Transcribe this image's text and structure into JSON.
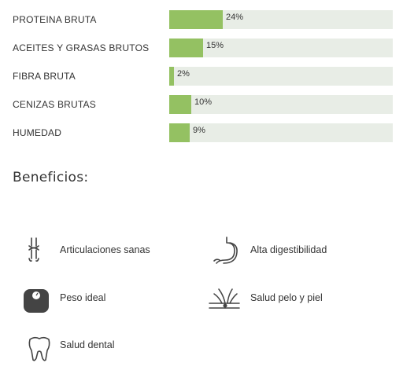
{
  "nutrition": [
    {
      "label": "PROTEINA BRUTA",
      "value": 24,
      "text": "24%"
    },
    {
      "label": "ACEITES Y GRASAS BRUTOS",
      "value": 15,
      "text": "15%"
    },
    {
      "label": "FIBRA BRUTA",
      "value": 2,
      "text": "2%"
    },
    {
      "label": "CENIZAS BRUTAS",
      "value": 10,
      "text": "10%"
    },
    {
      "label": "HUMEDAD",
      "value": 9,
      "text": "9%"
    }
  ],
  "benefits_title": "Beneficios:",
  "benefits": [
    {
      "label": "Articulaciones sanas",
      "icon": "joint-icon"
    },
    {
      "label": "Alta digestibilidad",
      "icon": "stomach-icon"
    },
    {
      "label": "Peso ideal",
      "icon": "scale-icon"
    },
    {
      "label": "Salud pelo y piel",
      "icon": "hair-skin-icon"
    },
    {
      "label": "Salud dental",
      "icon": "tooth-icon"
    }
  ],
  "colors": {
    "bar_fill": "#94c162",
    "bar_track": "#e8ede6",
    "icon": "#444444"
  }
}
